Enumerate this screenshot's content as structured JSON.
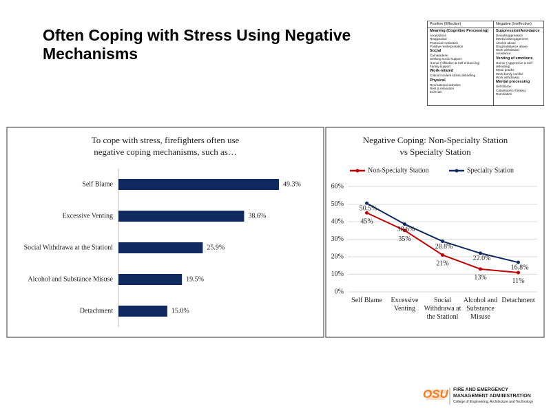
{
  "slide_title": "Often Coping with Stress Using Negative Mechanisms",
  "table": {
    "headers": [
      "Positive (Effective)",
      "Negative (Ineffective)"
    ],
    "columns": [
      [
        {
          "heading": "Meaning (Cognitive Processing)",
          "items": [
            "Acceptance",
            "Reappraisal",
            "Prosocial motivation",
            "Positive reinterpretation"
          ]
        },
        {
          "heading": "Social",
          "items": [
            "Camaraderie",
            "Seeking social support",
            "Humor (Affiliative & Self enhancing)",
            "Family support"
          ]
        },
        {
          "heading": "Work-related",
          "items": [
            "Critical incident stress debriefing"
          ]
        },
        {
          "heading": "Physical",
          "items": [
            "Recreational activities",
            "Rest & relaxation",
            "Exercise"
          ]
        }
      ],
      [
        {
          "heading": "Suppression/Avoidance",
          "items": [
            "Denial/suppression",
            "Mental disengagement",
            "Alcohol abuse",
            "Drug/substance abuse",
            "Work withdrawal",
            "Avoidance"
          ]
        },
        {
          "heading": "Venting of emotions",
          "items": [
            "Humor (Aggressive & Self defeating)",
            "Mean pranks",
            "Work family conflict",
            "Work withdrawal"
          ]
        },
        {
          "heading": "Mental processing",
          "items": [
            "Self-blame",
            "Catastrophic thinking",
            "Rumination"
          ]
        }
      ]
    ]
  },
  "chart_data": [
    {
      "type": "hbar",
      "title": "To cope with stress, firefighters often use negative coping mechanisms, such as…",
      "categories": [
        "Self Blame",
        "Excessive Venting",
        "Social Withdrawa at the Stationl",
        "Alcohol and Substance Misuse",
        "Detachment"
      ],
      "values": [
        49.3,
        38.6,
        25.9,
        19.5,
        15.0
      ],
      "value_labels": [
        "49.3%",
        "38.6%",
        "25.9%",
        "19.5%",
        "15.0%"
      ],
      "color": "#0e2a5e"
    },
    {
      "type": "line",
      "title": "Negative Coping: Non-Specialty Station vs Specialty Station",
      "categories": [
        "Self Blame",
        "Excessive Venting",
        "Social Withdrawa at the Stationl",
        "Alcohol and Substance Misuse",
        "Detachment"
      ],
      "series": [
        {
          "name": "Non-Specialty Station",
          "color": "#c00000",
          "values": [
            45,
            35,
            21,
            13,
            11
          ],
          "value_labels": [
            "45%",
            "35%",
            "21%",
            "13%",
            "11%"
          ]
        },
        {
          "name": "Specialty Station",
          "color": "#0e2a5e",
          "values": [
            50.5,
            38.6,
            28.8,
            22.0,
            16.8
          ],
          "value_labels": [
            "50.5%",
            "38.6%",
            "28.8%",
            "22.0%",
            "16.8%"
          ]
        }
      ],
      "ylim": [
        0,
        60
      ],
      "yticks": [
        {
          "value": 0,
          "label": "0%"
        },
        {
          "value": 10,
          "label": "10%"
        },
        {
          "value": 20,
          "label": "20%"
        },
        {
          "value": 30,
          "label": "30%"
        },
        {
          "value": 40,
          "label": "40%"
        },
        {
          "value": 50,
          "label": "50%"
        },
        {
          "value": 60,
          "label": "60%"
        }
      ],
      "grid": true,
      "legend": "top"
    }
  ],
  "footer": {
    "logo": "OSU",
    "unit_line1": "FIRE AND EMERGENCY",
    "unit_line2": "MANAGEMENT ADMINISTRATION",
    "college": "College of Engineering, Architecture and Technology"
  }
}
